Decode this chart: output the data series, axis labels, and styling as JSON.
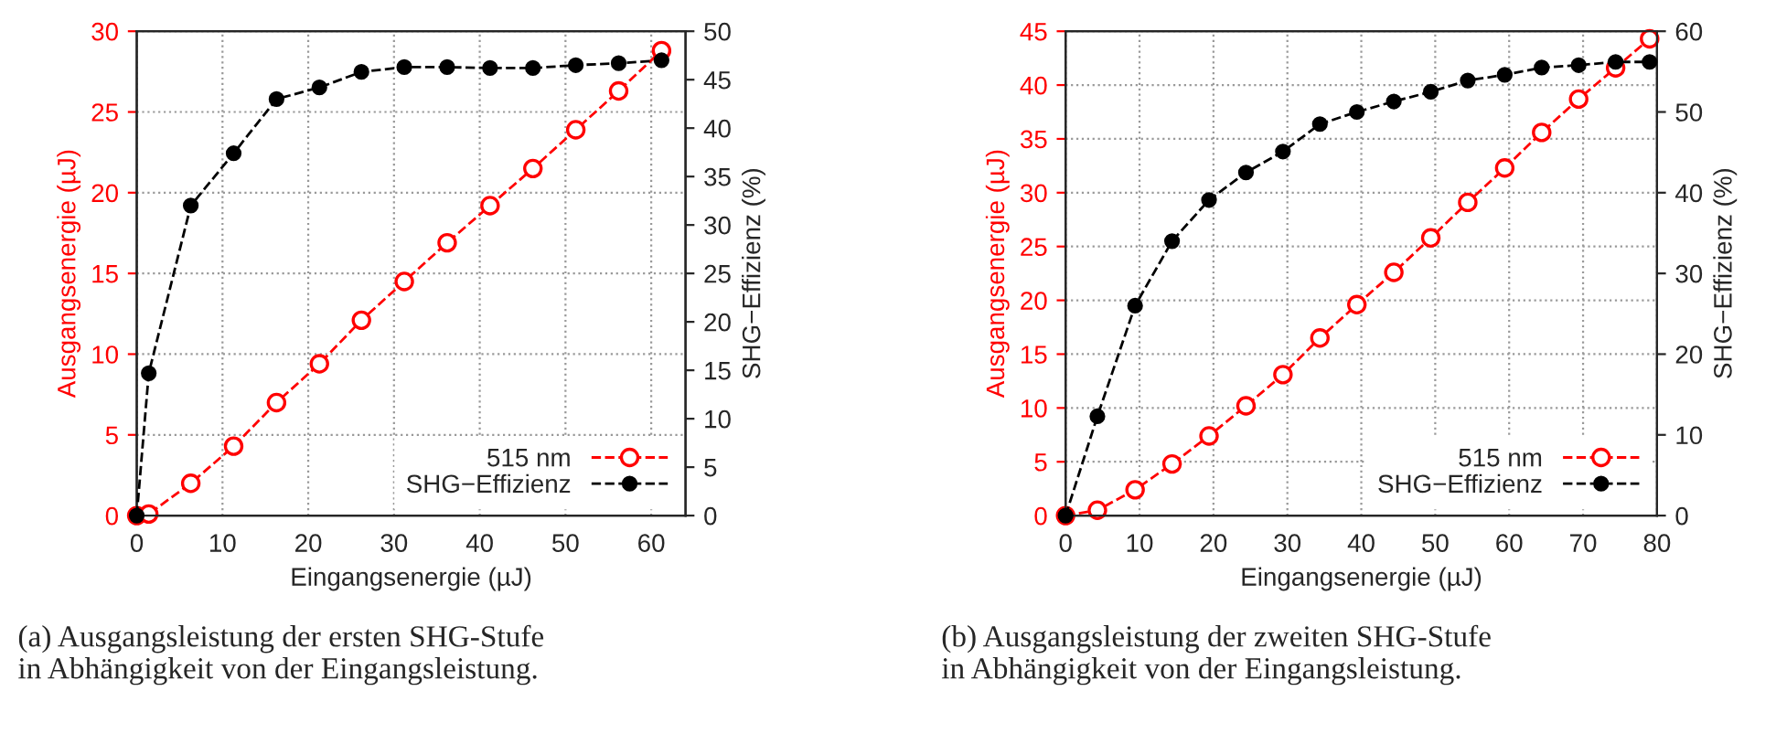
{
  "chart_data": [
    {
      "type": "line",
      "xlabel": "Eingangsenergie (µJ)",
      "ylabel": "Ausgangsenergie (µJ)",
      "y2label": "SHG−Effizienz (%)",
      "annotations": [
        "(a) Ausgangsleistung der ersten SHG-Stufe\nin Abhängigkeit von der Eingangsleistung."
      ],
      "x": [
        0,
        1.4,
        6.3,
        11.3,
        16.3,
        21.3,
        26.2,
        31.2,
        36.2,
        41.2,
        46.2,
        51.2,
        56.2,
        61.2
      ],
      "series": [
        {
          "name": "515 nm",
          "color": "#ff0000",
          "values": [
            0,
            0.1,
            2.0,
            4.3,
            7.0,
            9.4,
            12.1,
            14.5,
            16.9,
            19.2,
            21.5,
            23.9,
            26.3,
            28.8
          ]
        },
        {
          "name": "SHG−Effizienz",
          "color": "#000000",
          "axis": "y2",
          "values": [
            0,
            14.7,
            32.0,
            37.4,
            43.0,
            44.2,
            45.8,
            46.3,
            46.3,
            46.2,
            46.2,
            46.5,
            46.7,
            47.0
          ]
        }
      ],
      "xlim": [
        0,
        64
      ],
      "xticks": [
        0,
        10,
        20,
        30,
        40,
        50,
        60
      ],
      "ylim": [
        0,
        30
      ],
      "yticks": [
        0,
        5,
        10,
        15,
        20,
        25,
        30
      ],
      "y2lim": [
        0,
        50
      ],
      "y2ticks": [
        0,
        5,
        10,
        15,
        20,
        25,
        30,
        35,
        40,
        45,
        50
      ],
      "grid": true,
      "legend": "bottom right",
      "marker": "circle",
      "line_style": "dashed"
    },
    {
      "type": "line",
      "xlabel": "Eingangsenergie (µJ)",
      "ylabel": "Ausgangsenergie (µJ)",
      "y2label": "SHG−Effizienz (%)",
      "annotations": [
        "(b) Ausgangsleistung der zweiten SHG-Stufe\nin Abhängigkeit von der Eingangsleistung."
      ],
      "x": [
        0,
        4.3,
        9.4,
        14.4,
        19.4,
        24.4,
        29.4,
        34.4,
        39.4,
        44.4,
        49.4,
        54.4,
        59.4,
        64.4,
        69.4,
        74.4,
        79
      ],
      "series": [
        {
          "name": "515 nm",
          "color": "#ff0000",
          "values": [
            0,
            0.5,
            2.4,
            4.8,
            7.4,
            10.2,
            13.1,
            16.5,
            19.6,
            22.6,
            25.8,
            29.1,
            32.3,
            35.6,
            38.7,
            41.6,
            44.3
          ]
        },
        {
          "name": "SHG−Effizienz",
          "color": "#000000",
          "axis": "y2",
          "values": [
            0,
            12.3,
            26.0,
            34.0,
            39.1,
            42.5,
            45.1,
            48.5,
            50.0,
            51.3,
            52.5,
            53.9,
            54.6,
            55.5,
            55.8,
            56.2,
            56.2
          ]
        }
      ],
      "xlim": [
        0,
        80
      ],
      "xticks": [
        0,
        10,
        20,
        30,
        40,
        50,
        60,
        70,
        80
      ],
      "ylim": [
        0,
        45
      ],
      "yticks": [
        0,
        5,
        10,
        15,
        20,
        25,
        30,
        35,
        40,
        45
      ],
      "y2lim": [
        0,
        60
      ],
      "y2ticks": [
        0,
        10,
        20,
        30,
        40,
        50,
        60
      ],
      "grid": true,
      "legend": "bottom right",
      "marker": "circle",
      "line_style": "dashed"
    }
  ]
}
